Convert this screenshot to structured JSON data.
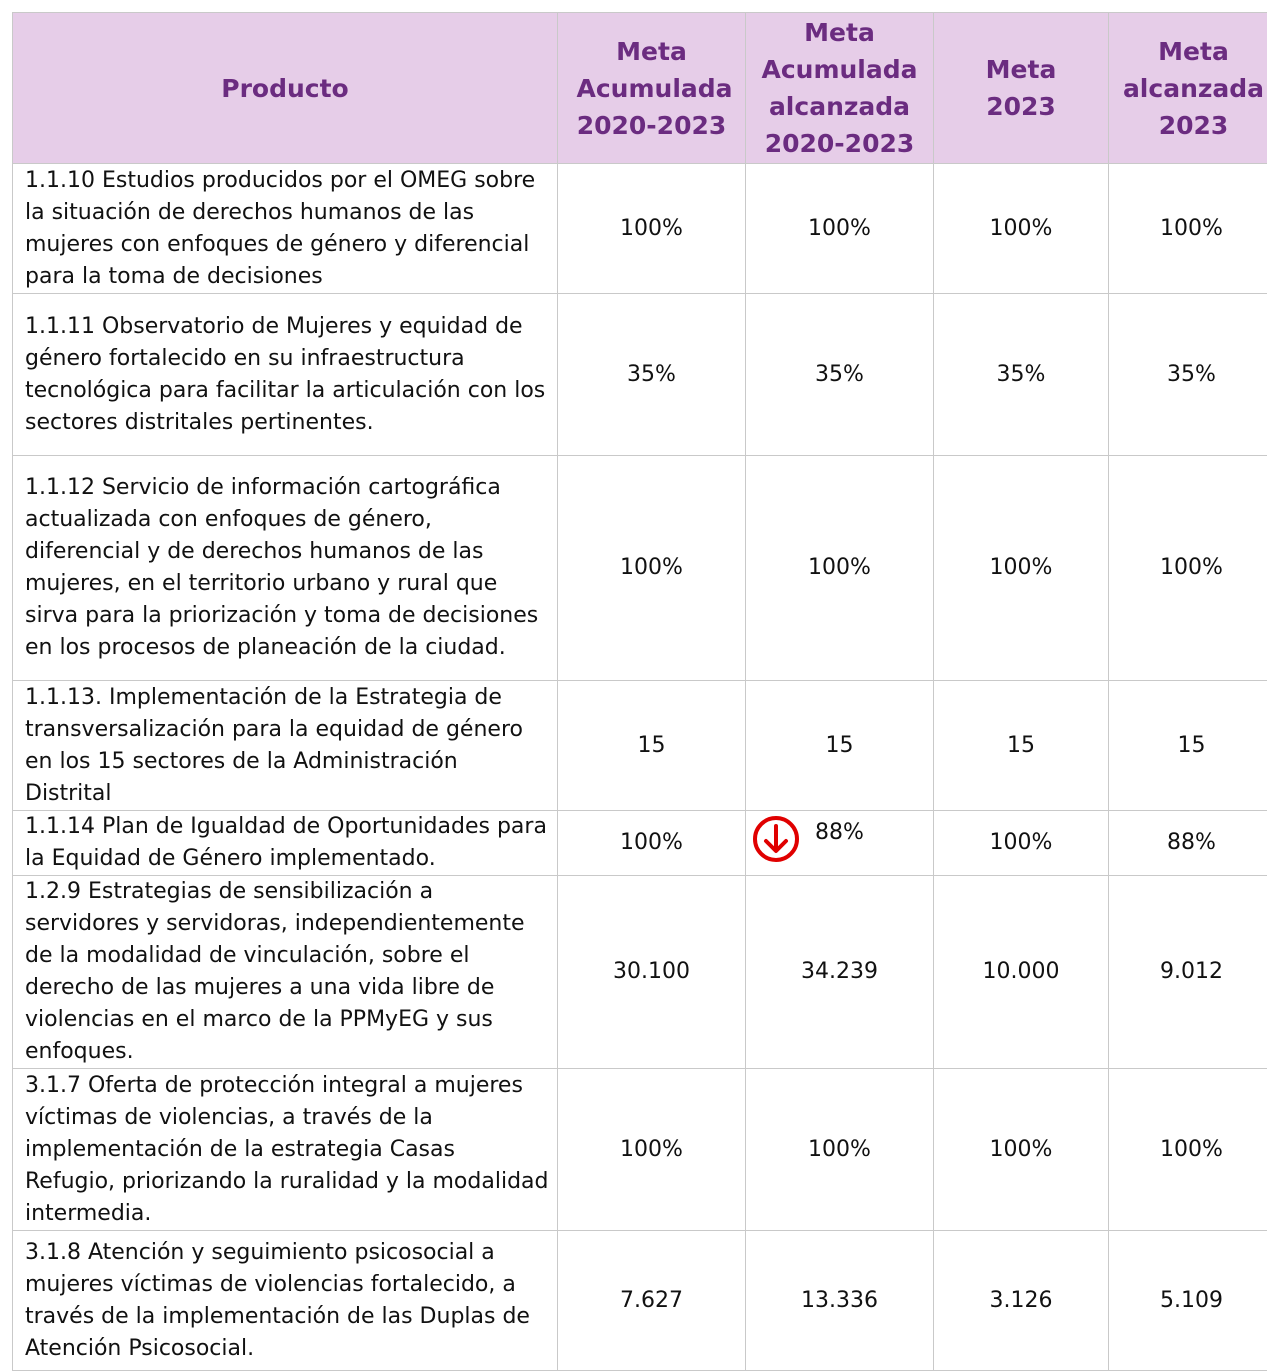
{
  "table": {
    "header": [
      "Producto",
      "Meta Acumulada 2020-2023",
      "Meta Acumulada alcanzada 2020-2023",
      "Meta 2023",
      "Meta alcanzada 2023"
    ],
    "rows": [
      [
        "1.1.10 Estudios producidos por el OMEG sobre la situación de derechos humanos de las mujeres con enfoques de género y diferencial para la toma de decisiones",
        "100%",
        "100%",
        "100%",
        "100%"
      ],
      [
        "1.1.11 Observatorio de Mujeres y equidad de género fortalecido en su infraestructura tecnológica para facilitar la articulación con los sectores distritales pertinentes.",
        "35%",
        "35%",
        "35%",
        "35%"
      ],
      [
        "1.1.12 Servicio de información cartográfica actualizada con enfoques de género, diferencial y de derechos humanos de las mujeres, en el territorio urbano y rural que sirva para la priorización y toma de decisiones en los procesos de planeación de la ciudad.",
        "100%",
        "100%",
        "100%",
        "100%"
      ],
      [
        "1.1.13. Implementación de la Estrategia de transversalización para la equidad de género en los 15 sectores de la Administración Distrital",
        "15",
        "15",
        "15",
        "15"
      ],
      [
        "1.1.14 Plan de Igualdad de Oportunidades para la Equidad de Género implementado.",
        "100%",
        "88%",
        "100%",
        "88%"
      ],
      [
        "1.2.9 Estrategias de sensibilización a servidores y servidoras, independientemente de la modalidad de vinculación, sobre el derecho de las mujeres a una vida libre de violencias en el marco de la PPMyEG y sus enfoques.",
        "30.100",
        "34.239",
        "10.000",
        "9.012"
      ],
      [
        "3.1.7 Oferta de protección integral a mujeres víctimas de violencias, a través de la implementación de la estrategia Casas Refugio, priorizando la ruralidad y la modalidad intermedia.",
        "100%",
        "100%",
        "100%",
        "100%"
      ],
      [
        "3.1.8 Atención y seguimiento psicosocial a mujeres víctimas de violencias fortalecido, a través de la implementación de las Duplas de Atención Psicosocial.",
        "7.627",
        "13.336",
        "3.126",
        "5.109"
      ]
    ]
  }
}
